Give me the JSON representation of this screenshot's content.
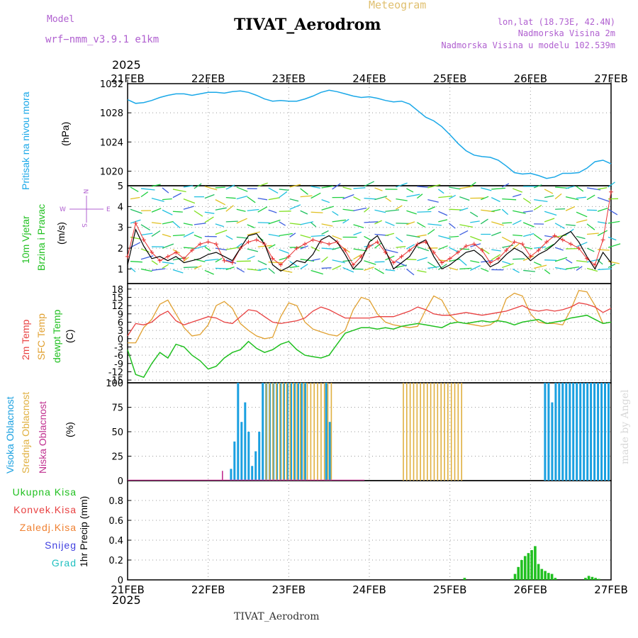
{
  "header": {
    "model_label": "Model",
    "model_name": "wrf−nmm_v3.9.1  e1km",
    "meteogram_label": "Meteogram",
    "title": "TIVAT_Aerodrom",
    "coords": "lon,lat (18.73E, 42.4N)",
    "elevation": "Nadmorska Visina 2m",
    "model_elevation": "Nadmorska Visina u modelu 102.539m",
    "year_top": "2025",
    "year_bottom": "2025",
    "footer_station": "TIVAT_Aerodrom",
    "watermark": "made by Angel"
  },
  "colors": {
    "pressure": "#1aa8e8",
    "wind_speed": "#000000",
    "gust": "#e83030",
    "temp2m": "#e84040",
    "sfc_temp": "#e0a030",
    "dewpoint": "#20c020",
    "cloud_high": "#1aa0e0",
    "cloud_mid": "#e0b040",
    "cloud_low": "#c03090",
    "precip": "#20c020"
  },
  "chart_data": [
    {
      "type": "line",
      "panel": "pressure",
      "ylabel": [
        "Pritisak na nivou mora",
        "(hPa)"
      ],
      "x_tick_labels": [
        "21FEB",
        "22FEB",
        "23FEB",
        "24FEB",
        "25FEB",
        "26FEB",
        "27FEB"
      ],
      "ylim": [
        1018,
        1032
      ],
      "y_ticks": [
        1020,
        1024,
        1028,
        1032
      ],
      "grid": true,
      "series": [
        {
          "values": [
            1029.8,
            1029.3,
            1029.4,
            1029.7,
            1030.1,
            1030.4,
            1030.6,
            1030.6,
            1030.4,
            1030.6,
            1030.8,
            1030.8,
            1030.7,
            1030.9,
            1031.0,
            1030.8,
            1030.4,
            1029.9,
            1029.6,
            1029.7,
            1029.6,
            1029.6,
            1029.9,
            1030.3,
            1030.8,
            1031.1,
            1030.9,
            1030.6,
            1030.3,
            1030.1,
            1030.2,
            1030.0,
            1029.7,
            1029.5,
            1029.6,
            1029.2,
            1028.3,
            1027.4,
            1026.9,
            1026.1,
            1025.0,
            1023.8,
            1022.8,
            1022.2,
            1022.0,
            1021.9,
            1021.5,
            1020.7,
            1019.8,
            1019.6,
            1019.7,
            1019.4,
            1019.0,
            1019.2,
            1019.7,
            1019.7,
            1019.8,
            1020.4,
            1021.3,
            1021.5,
            1021.0
          ]
        }
      ]
    },
    {
      "type": "line",
      "panel": "wind",
      "ylabel": [
        "10m Vjetar",
        "Brzina i Pravac",
        "(m/s)"
      ],
      "compass": {
        "n": "N",
        "s": "S",
        "e": "E",
        "w": "W"
      },
      "ylim": [
        0.3,
        5
      ],
      "y_ticks": [
        1,
        2,
        3,
        4,
        5
      ],
      "grid": true,
      "series": [
        {
          "values": [
            1.2,
            2.9,
            2.1,
            1.5,
            1.6,
            1.4,
            1.6,
            1.3,
            1.4,
            1.5,
            1.7,
            1.8,
            1.6,
            1.4,
            2.0,
            2.6,
            2.7,
            2.2,
            1.2,
            0.9,
            1.1,
            1.4,
            1.3,
            1.7,
            2.4,
            2.6,
            2.3,
            1.7,
            1.0,
            1.4,
            2.3,
            2.6,
            1.9,
            1.0,
            1.3,
            1.6,
            2.2,
            2.4,
            1.6,
            1.0,
            1.2,
            1.5,
            1.8,
            1.9,
            1.6,
            1.1,
            1.3,
            1.7,
            2.0,
            1.8,
            1.4,
            1.7,
            1.9,
            2.2,
            2.6,
            2.8,
            2.3,
            1.6,
            1.0,
            1.8,
            1.3
          ]
        },
        {
          "values": [
            1.6,
            3.2,
            2.4,
            1.8,
            1.4,
            1.6,
            1.8,
            1.5,
            1.9,
            2.2,
            2.3,
            2.2,
            1.4,
            1.3,
            2.0,
            2.3,
            2.4,
            2.2,
            1.5,
            1.2,
            1.6,
            2.0,
            2.2,
            2.4,
            2.3,
            2.2,
            2.3,
            1.9,
            1.2,
            1.6,
            2.1,
            2.3,
            1.8,
            1.3,
            1.6,
            1.9,
            2.2,
            2.3,
            1.8,
            1.3,
            1.5,
            1.8,
            2.1,
            2.2,
            1.9,
            1.3,
            1.5,
            1.9,
            2.3,
            2.2,
            1.6,
            1.9,
            2.3,
            2.6,
            2.4,
            2.2,
            2.0,
            1.5,
            1.2,
            2.4,
            4.7
          ]
        }
      ]
    },
    {
      "type": "line",
      "panel": "temperature",
      "ylabel": [
        "2m Temp",
        "SFC Temp",
        "dewpt Temp",
        "(C)"
      ],
      "ylim": [
        -16,
        20
      ],
      "y_ticks": [
        -15,
        -12,
        -9,
        -6,
        -3,
        0,
        3,
        6,
        9,
        12,
        15,
        18
      ],
      "grid": true,
      "series": [
        {
          "values": [
            1.0,
            5.5,
            5.0,
            6.0,
            8.5,
            10.0,
            6.5,
            5.0,
            6.0,
            7.0,
            8.0,
            7.5,
            6.0,
            5.5,
            8.0,
            10.5,
            10.0,
            8.0,
            6.0,
            5.5,
            6.0,
            6.5,
            7.5,
            10.0,
            11.5,
            10.5,
            9.0,
            7.5,
            7.5,
            7.5,
            7.5,
            8.0,
            8.0,
            8.0,
            9.0,
            10.0,
            11.5,
            10.5,
            9.0,
            8.5,
            8.5,
            9.0,
            9.5,
            9.0,
            8.5,
            9.0,
            9.5,
            10.0,
            11.0,
            12.0,
            10.5,
            10.0,
            10.5,
            10.0,
            10.5,
            11.5,
            13.0,
            12.5,
            11.5,
            9.5,
            11.0
          ]
        },
        {
          "values": [
            -1.5,
            -1.5,
            4.0,
            7.0,
            12.5,
            14.0,
            9.0,
            4.0,
            1.0,
            1.5,
            5.0,
            12.0,
            13.5,
            11.0,
            5.5,
            3.0,
            1.0,
            0.0,
            0.5,
            8.0,
            13.0,
            12.0,
            6.0,
            3.5,
            2.5,
            1.5,
            1.0,
            3.0,
            10.5,
            15.0,
            14.0,
            9.0,
            6.0,
            5.0,
            4.5,
            4.0,
            4.5,
            10.5,
            15.5,
            14.0,
            8.5,
            6.0,
            5.5,
            5.0,
            4.5,
            5.0,
            7.0,
            14.5,
            16.5,
            15.5,
            9.0,
            6.0,
            5.5,
            5.5,
            5.0,
            10.5,
            17.5,
            17.0,
            12.0,
            5.5,
            6.0
          ]
        },
        {
          "values": [
            -4.0,
            -13.0,
            -14.0,
            -9.0,
            -5.0,
            -7.0,
            -2.0,
            -3.0,
            -6.0,
            -8.0,
            -11.0,
            -10.0,
            -7.0,
            -5.0,
            -4.0,
            -1.0,
            -3.5,
            -5.0,
            -4.0,
            -2.0,
            -1.0,
            -4.0,
            -6.0,
            -6.5,
            -7.0,
            -6.0,
            -2.0,
            2.0,
            3.0,
            4.0,
            4.0,
            3.5,
            4.0,
            3.5,
            4.5,
            5.0,
            5.5,
            5.0,
            4.5,
            4.0,
            5.5,
            6.0,
            5.5,
            6.0,
            6.5,
            6.0,
            6.5,
            6.0,
            5.0,
            6.0,
            6.5,
            7.0,
            5.5,
            6.0,
            6.5,
            7.5,
            8.0,
            8.5,
            7.0,
            5.5,
            6.0
          ]
        }
      ]
    },
    {
      "type": "bar",
      "panel": "cloud_cover",
      "ylabel": [
        "Visoka Oblacnost",
        "Srednja Oblacnost",
        "Niska Oblacnost",
        "(%)"
      ],
      "ylim": [
        0,
        100
      ],
      "y_ticks": [
        0,
        25,
        50,
        75,
        100
      ],
      "grid": true,
      "series": [
        {
          "name": "Visoka Oblacnost",
          "values": [
            0,
            0,
            0,
            0,
            0,
            0,
            0,
            0,
            0,
            0,
            0,
            0,
            0,
            0,
            0,
            0,
            0,
            0,
            0,
            0,
            0,
            0,
            0,
            0,
            0,
            0,
            0,
            0,
            0,
            12,
            40,
            100,
            60,
            80,
            50,
            15,
            30,
            50,
            100,
            100,
            100,
            100,
            100,
            100,
            100,
            100,
            100,
            100,
            100,
            100,
            100,
            0,
            0,
            0,
            0,
            0,
            100,
            60,
            0,
            0,
            0,
            0,
            0,
            0,
            0,
            0,
            0,
            0,
            0,
            0,
            0,
            0,
            0,
            0,
            0,
            0,
            0,
            0,
            0,
            0,
            0,
            0,
            0,
            0,
            0,
            0,
            0,
            0,
            0,
            0,
            0,
            0,
            0,
            0,
            0,
            0,
            0,
            0,
            0,
            0,
            0,
            0,
            0,
            0,
            0,
            0,
            0,
            0,
            0,
            0,
            0,
            0,
            0,
            0,
            0,
            0,
            0,
            0,
            100,
            100,
            80,
            100,
            100,
            100,
            100,
            100,
            100,
            100,
            100,
            100,
            100,
            100,
            100,
            100,
            100,
            100,
            100
          ]
        },
        {
          "name": "Srednja Oblacnost",
          "values": [
            0,
            0,
            0,
            0,
            0,
            0,
            0,
            0,
            0,
            0,
            0,
            0,
            0,
            0,
            0,
            0,
            0,
            0,
            0,
            0,
            0,
            0,
            0,
            0,
            0,
            0,
            0,
            0,
            0,
            0,
            0,
            0,
            0,
            0,
            0,
            0,
            0,
            0,
            0,
            0,
            100,
            100,
            100,
            100,
            100,
            100,
            100,
            100,
            100,
            100,
            100,
            100,
            100,
            100,
            100,
            100,
            100,
            100,
            100,
            100,
            0,
            0,
            0,
            0,
            0,
            0,
            0,
            0,
            0,
            0,
            0,
            0,
            0,
            0,
            0,
            0,
            0,
            0,
            0,
            0,
            100,
            100,
            100,
            100,
            100,
            100,
            100,
            100,
            100,
            100,
            100,
            100,
            100,
            100,
            100,
            100,
            100,
            100,
            0,
            0,
            0,
            0,
            0,
            0,
            0,
            0,
            0,
            0,
            0,
            0,
            0,
            0,
            0,
            0,
            0,
            0,
            0,
            0,
            0,
            0,
            0,
            0,
            0,
            0,
            0,
            0,
            0,
            0,
            0,
            0,
            0,
            0,
            0,
            0,
            0,
            0,
            0,
            0,
            0,
            0,
            0
          ]
        },
        {
          "name": "Niska Oblacnost",
          "values": [
            0,
            0,
            0,
            0,
            0,
            0,
            0,
            0,
            0,
            0,
            0,
            0,
            0,
            0,
            0,
            0,
            0,
            0,
            0,
            0,
            0,
            0,
            0,
            0,
            0,
            0,
            0,
            10,
            0,
            0,
            0,
            0,
            0,
            0,
            0,
            0,
            0,
            0,
            0,
            0,
            0,
            0,
            0,
            0,
            0,
            0,
            0,
            0,
            0,
            0,
            0,
            0,
            0,
            0,
            0,
            0,
            0,
            0,
            0,
            0,
            0,
            0,
            0,
            0,
            0,
            0,
            0,
            0,
            0,
            0,
            0,
            0,
            0,
            0,
            0,
            0,
            0,
            0,
            0,
            0,
            0,
            0,
            0,
            0,
            0,
            0,
            0,
            0,
            0,
            0,
            0,
            0,
            0,
            0,
            0,
            0,
            0,
            0,
            0,
            0,
            0,
            0,
            0,
            0,
            0,
            0,
            0,
            0,
            0,
            0,
            0,
            0,
            0,
            0,
            0,
            0,
            0,
            0,
            0,
            0,
            0,
            0,
            0,
            0,
            0,
            0,
            0,
            0,
            0,
            0,
            0,
            0,
            0,
            0,
            0,
            0,
            0,
            0,
            0,
            0,
            0
          ]
        }
      ]
    },
    {
      "type": "bar",
      "panel": "precipitation",
      "ylabel": [
        "1hr Precip (mm)"
      ],
      "legend": [
        "Ukupna Kisa",
        "Konvek.Kisa",
        "Zaledj.Kisa",
        "Snijeg",
        "Grad"
      ],
      "x_tick_labels": [
        "21FEB",
        "22FEB",
        "23FEB",
        "24FEB",
        "25FEB",
        "26FEB",
        "27FEB"
      ],
      "ylim": [
        0,
        1.0
      ],
      "y_ticks": [
        0,
        0.2,
        0.4,
        0.6,
        0.8
      ],
      "grid": true,
      "series": [
        {
          "name": "Ukupna Kisa",
          "x": [
            100,
            101,
            102,
            103,
            104,
            105,
            106,
            107,
            108,
            109,
            110,
            111,
            112,
            113,
            114,
            115,
            116,
            117,
            118,
            119,
            120,
            121,
            122,
            123,
            124,
            125,
            126,
            127,
            128,
            129,
            130,
            131,
            132,
            133,
            134,
            135,
            136,
            137,
            138,
            139,
            140,
            141,
            142,
            143,
            144,
            145,
            146,
            147,
            148,
            149,
            150,
            151
          ],
          "values": [
            0.02,
            0,
            0,
            0,
            0,
            0,
            0,
            0,
            0,
            0,
            0,
            0,
            0,
            0,
            0.01,
            0.06,
            0.13,
            0.2,
            0.24,
            0.27,
            0.3,
            0.34,
            0.16,
            0.11,
            0.09,
            0.07,
            0.06,
            0.02,
            0,
            0,
            0,
            0,
            0,
            0,
            0,
            0,
            0.02,
            0.04,
            0.03,
            0.02,
            0.01,
            0,
            0,
            0,
            0,
            0,
            0,
            0,
            0,
            0,
            0,
            0
          ]
        }
      ]
    }
  ]
}
